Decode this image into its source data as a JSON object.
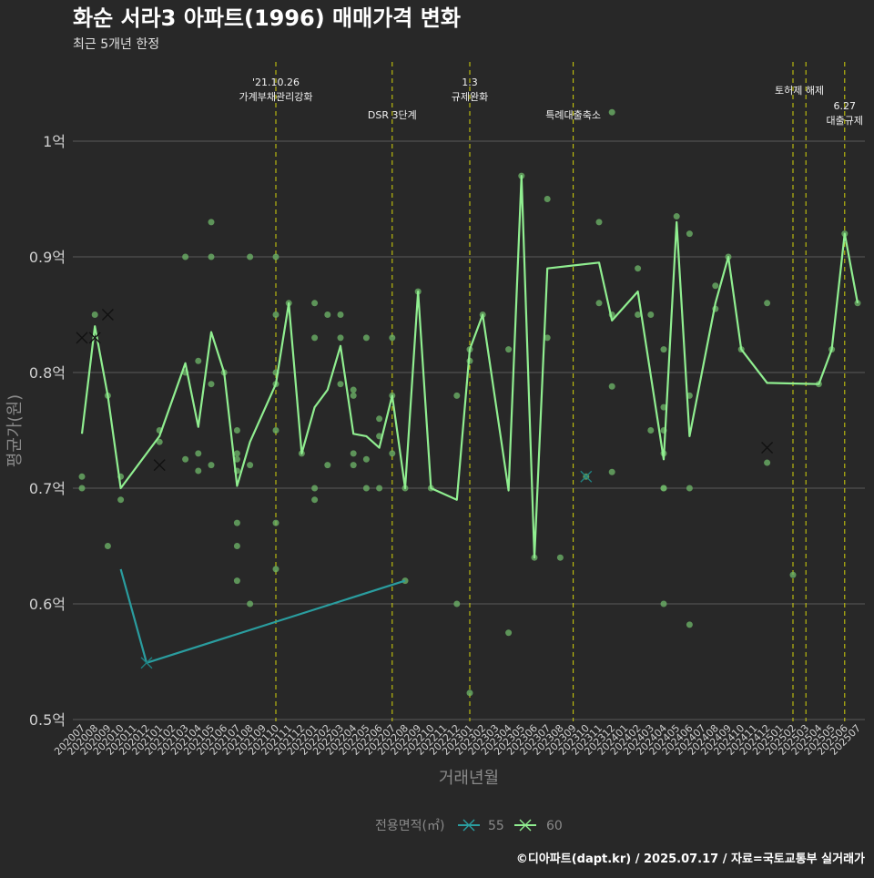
{
  "chart_data": {
    "type": "line",
    "title": "화순 서라3 아파트(1996) 매매가격 변화",
    "subtitle": "최근 5개년 한정",
    "xlabel": "거래년월",
    "ylabel": "평균가(원)",
    "ylim": [
      0.5,
      1.05
    ],
    "yticks": [
      {
        "value": 0.5,
        "label": "0.5억"
      },
      {
        "value": 0.6,
        "label": "0.6억"
      },
      {
        "value": 0.7,
        "label": "0.7억"
      },
      {
        "value": 0.8,
        "label": "0.8억"
      },
      {
        "value": 0.9,
        "label": "0.9억"
      },
      {
        "value": 1.0,
        "label": "1억"
      }
    ],
    "categories": [
      "202007",
      "202008",
      "202009",
      "202010",
      "202011",
      "202012",
      "202101",
      "202102",
      "202103",
      "202104",
      "202105",
      "202106",
      "202107",
      "202108",
      "202109",
      "202110",
      "202111",
      "202112",
      "202201",
      "202202",
      "202203",
      "202204",
      "202205",
      "202206",
      "202207",
      "202208",
      "202209",
      "202210",
      "202211",
      "202212",
      "202301",
      "202302",
      "202303",
      "202304",
      "202305",
      "202306",
      "202307",
      "202308",
      "202309",
      "202310",
      "202311",
      "202312",
      "202401",
      "202402",
      "202403",
      "202404",
      "202405",
      "202406",
      "202407",
      "202408",
      "202409",
      "202410",
      "202411",
      "202412",
      "202501",
      "202502",
      "202503",
      "202504",
      "202505",
      "202506",
      "202507"
    ],
    "series": [
      {
        "name": "55",
        "color": "#2a9d9f",
        "points": [
          {
            "x": "202010",
            "y": 0.63
          },
          {
            "x": "202012",
            "y": 0.549
          },
          {
            "x": "202208",
            "y": 0.62
          }
        ],
        "markers": [
          {
            "x": "202012",
            "y": 0.549
          },
          {
            "x": "202310",
            "y": 0.71
          }
        ]
      },
      {
        "name": "60",
        "color": "#90ee90",
        "points": [
          {
            "x": "202007",
            "y": 0.747
          },
          {
            "x": "202008",
            "y": 0.84
          },
          {
            "x": "202009",
            "y": 0.78
          },
          {
            "x": "202010",
            "y": 0.7
          },
          {
            "x": "202101",
            "y": 0.745
          },
          {
            "x": "202103",
            "y": 0.808
          },
          {
            "x": "202104",
            "y": 0.753
          },
          {
            "x": "202105",
            "y": 0.835
          },
          {
            "x": "202106",
            "y": 0.8
          },
          {
            "x": "202107",
            "y": 0.702
          },
          {
            "x": "202108",
            "y": 0.74
          },
          {
            "x": "202110",
            "y": 0.79
          },
          {
            "x": "202111",
            "y": 0.86
          },
          {
            "x": "202112",
            "y": 0.73
          },
          {
            "x": "202201",
            "y": 0.77
          },
          {
            "x": "202202",
            "y": 0.785
          },
          {
            "x": "202203",
            "y": 0.823
          },
          {
            "x": "202204",
            "y": 0.747
          },
          {
            "x": "202205",
            "y": 0.745
          },
          {
            "x": "202206",
            "y": 0.735
          },
          {
            "x": "202207",
            "y": 0.78
          },
          {
            "x": "202208",
            "y": 0.7
          },
          {
            "x": "202209",
            "y": 0.87
          },
          {
            "x": "202210",
            "y": 0.7
          },
          {
            "x": "202212",
            "y": 0.69
          },
          {
            "x": "202301",
            "y": 0.82
          },
          {
            "x": "202302",
            "y": 0.85
          },
          {
            "x": "202304",
            "y": 0.698
          },
          {
            "x": "202305",
            "y": 0.97
          },
          {
            "x": "202306",
            "y": 0.64
          },
          {
            "x": "202307",
            "y": 0.89
          },
          {
            "x": "202311",
            "y": 0.895
          },
          {
            "x": "202312",
            "y": 0.845
          },
          {
            "x": "202402",
            "y": 0.87
          },
          {
            "x": "202404",
            "y": 0.725
          },
          {
            "x": "202405",
            "y": 0.93
          },
          {
            "x": "202406",
            "y": 0.745
          },
          {
            "x": "202408",
            "y": 0.86
          },
          {
            "x": "202409",
            "y": 0.9
          },
          {
            "x": "202410",
            "y": 0.82
          },
          {
            "x": "202412",
            "y": 0.791
          },
          {
            "x": "202504",
            "y": 0.79
          },
          {
            "x": "202505",
            "y": 0.82
          },
          {
            "x": "202506",
            "y": 0.92
          },
          {
            "x": "202507",
            "y": 0.86
          }
        ],
        "markers": [
          {
            "x": "202007",
            "y": 0.83
          },
          {
            "x": "202008",
            "y": 0.83
          },
          {
            "x": "202009",
            "y": 0.85
          },
          {
            "x": "202101",
            "y": 0.72
          },
          {
            "x": "202412",
            "y": 0.735
          }
        ]
      }
    ],
    "scatter": [
      {
        "x": "202007",
        "y": 0.71
      },
      {
        "x": "202007",
        "y": 0.7
      },
      {
        "x": "202008",
        "y": 0.85
      },
      {
        "x": "202009",
        "y": 0.78
      },
      {
        "x": "202009",
        "y": 0.65
      },
      {
        "x": "202010",
        "y": 0.71
      },
      {
        "x": "202010",
        "y": 0.69
      },
      {
        "x": "202101",
        "y": 0.75
      },
      {
        "x": "202101",
        "y": 0.74
      },
      {
        "x": "202103",
        "y": 0.9
      },
      {
        "x": "202103",
        "y": 0.8
      },
      {
        "x": "202103",
        "y": 0.725
      },
      {
        "x": "202104",
        "y": 0.81
      },
      {
        "x": "202104",
        "y": 0.73
      },
      {
        "x": "202104",
        "y": 0.715
      },
      {
        "x": "202105",
        "y": 0.93
      },
      {
        "x": "202105",
        "y": 0.9
      },
      {
        "x": "202105",
        "y": 0.79
      },
      {
        "x": "202105",
        "y": 0.72
      },
      {
        "x": "202106",
        "y": 0.8
      },
      {
        "x": "202107",
        "y": 0.75
      },
      {
        "x": "202107",
        "y": 0.73
      },
      {
        "x": "202107",
        "y": 0.725
      },
      {
        "x": "202107",
        "y": 0.715
      },
      {
        "x": "202107",
        "y": 0.67
      },
      {
        "x": "202107",
        "y": 0.65
      },
      {
        "x": "202107",
        "y": 0.62
      },
      {
        "x": "202108",
        "y": 0.9
      },
      {
        "x": "202108",
        "y": 0.72
      },
      {
        "x": "202108",
        "y": 0.6
      },
      {
        "x": "202110",
        "y": 0.9
      },
      {
        "x": "202110",
        "y": 0.85
      },
      {
        "x": "202110",
        "y": 0.8
      },
      {
        "x": "202110",
        "y": 0.79
      },
      {
        "x": "202110",
        "y": 0.75
      },
      {
        "x": "202110",
        "y": 0.67
      },
      {
        "x": "202110",
        "y": 0.63
      },
      {
        "x": "202111",
        "y": 0.86
      },
      {
        "x": "202112",
        "y": 0.73
      },
      {
        "x": "202201",
        "y": 0.86
      },
      {
        "x": "202201",
        "y": 0.83
      },
      {
        "x": "202201",
        "y": 0.7
      },
      {
        "x": "202201",
        "y": 0.69
      },
      {
        "x": "202202",
        "y": 0.85
      },
      {
        "x": "202202",
        "y": 0.72
      },
      {
        "x": "202203",
        "y": 0.85
      },
      {
        "x": "202203",
        "y": 0.83
      },
      {
        "x": "202203",
        "y": 0.79
      },
      {
        "x": "202204",
        "y": 0.785
      },
      {
        "x": "202204",
        "y": 0.78
      },
      {
        "x": "202204",
        "y": 0.73
      },
      {
        "x": "202204",
        "y": 0.72
      },
      {
        "x": "202205",
        "y": 0.83
      },
      {
        "x": "202205",
        "y": 0.725
      },
      {
        "x": "202205",
        "y": 0.7
      },
      {
        "x": "202206",
        "y": 0.76
      },
      {
        "x": "202206",
        "y": 0.745
      },
      {
        "x": "202206",
        "y": 0.7
      },
      {
        "x": "202207",
        "y": 0.83
      },
      {
        "x": "202207",
        "y": 0.78
      },
      {
        "x": "202207",
        "y": 0.73
      },
      {
        "x": "202208",
        "y": 0.7
      },
      {
        "x": "202208",
        "y": 0.62
      },
      {
        "x": "202209",
        "y": 0.87
      },
      {
        "x": "202210",
        "y": 0.7
      },
      {
        "x": "202212",
        "y": 0.78
      },
      {
        "x": "202212",
        "y": 0.6
      },
      {
        "x": "202301",
        "y": 0.82
      },
      {
        "x": "202301",
        "y": 0.81
      },
      {
        "x": "202301",
        "y": 0.523
      },
      {
        "x": "202302",
        "y": 0.85
      },
      {
        "x": "202304",
        "y": 0.82
      },
      {
        "x": "202304",
        "y": 0.575
      },
      {
        "x": "202305",
        "y": 0.97
      },
      {
        "x": "202306",
        "y": 0.64
      },
      {
        "x": "202307",
        "y": 0.95
      },
      {
        "x": "202307",
        "y": 0.83
      },
      {
        "x": "202308",
        "y": 0.64
      },
      {
        "x": "202310",
        "y": 0.71
      },
      {
        "x": "202311",
        "y": 0.93
      },
      {
        "x": "202311",
        "y": 0.86
      },
      {
        "x": "202312",
        "y": 1.025
      },
      {
        "x": "202312",
        "y": 0.85
      },
      {
        "x": "202312",
        "y": 0.788
      },
      {
        "x": "202312",
        "y": 0.714
      },
      {
        "x": "202402",
        "y": 0.89
      },
      {
        "x": "202402",
        "y": 0.85
      },
      {
        "x": "202403",
        "y": 0.85
      },
      {
        "x": "202403",
        "y": 0.75
      },
      {
        "x": "202404",
        "y": 0.82
      },
      {
        "x": "202404",
        "y": 0.77
      },
      {
        "x": "202404",
        "y": 0.75
      },
      {
        "x": "202404",
        "y": 0.73
      },
      {
        "x": "202404",
        "y": 0.7
      },
      {
        "x": "202404",
        "y": 0.7
      },
      {
        "x": "202404",
        "y": 0.6
      },
      {
        "x": "202405",
        "y": 0.935
      },
      {
        "x": "202406",
        "y": 0.92
      },
      {
        "x": "202406",
        "y": 0.78
      },
      {
        "x": "202406",
        "y": 0.7
      },
      {
        "x": "202406",
        "y": 0.582
      },
      {
        "x": "202408",
        "y": 0.875
      },
      {
        "x": "202408",
        "y": 0.855
      },
      {
        "x": "202409",
        "y": 0.9
      },
      {
        "x": "202410",
        "y": 0.82
      },
      {
        "x": "202412",
        "y": 0.86
      },
      {
        "x": "202412",
        "y": 0.722
      },
      {
        "x": "202502",
        "y": 0.625
      },
      {
        "x": "202504",
        "y": 0.79
      },
      {
        "x": "202505",
        "y": 0.82
      },
      {
        "x": "202506",
        "y": 0.92
      },
      {
        "x": "202507",
        "y": 0.86
      }
    ],
    "annotations": [
      {
        "x": "202110",
        "lines": [
          "'21.10.26",
          "가계부채관리강화"
        ],
        "level": "top"
      },
      {
        "x": "202207",
        "lines": [
          "DSR 3단계"
        ],
        "level": "low"
      },
      {
        "x": "202301",
        "lines": [
          "1.3",
          "규제완화"
        ],
        "level": "top"
      },
      {
        "x": "202309",
        "lines": [
          "특례대출축소"
        ],
        "level": "low"
      },
      {
        "x": "202502",
        "lines": [
          "토허제 해제"
        ],
        "level": "mid",
        "pos": "202502.5"
      },
      {
        "x": "202503",
        "lines": [],
        "level": "none"
      },
      {
        "x": "202506",
        "lines": [
          "6.27",
          "대출규제"
        ],
        "level": "low2"
      }
    ],
    "legend": {
      "title": "전용면적(㎡)",
      "items": [
        "55",
        "60"
      ],
      "placement": "bottom"
    },
    "grid": true
  },
  "caption": "©디아파트(dapt.kr) / 2025.07.17 / 자료=국토교통부 실거래가"
}
